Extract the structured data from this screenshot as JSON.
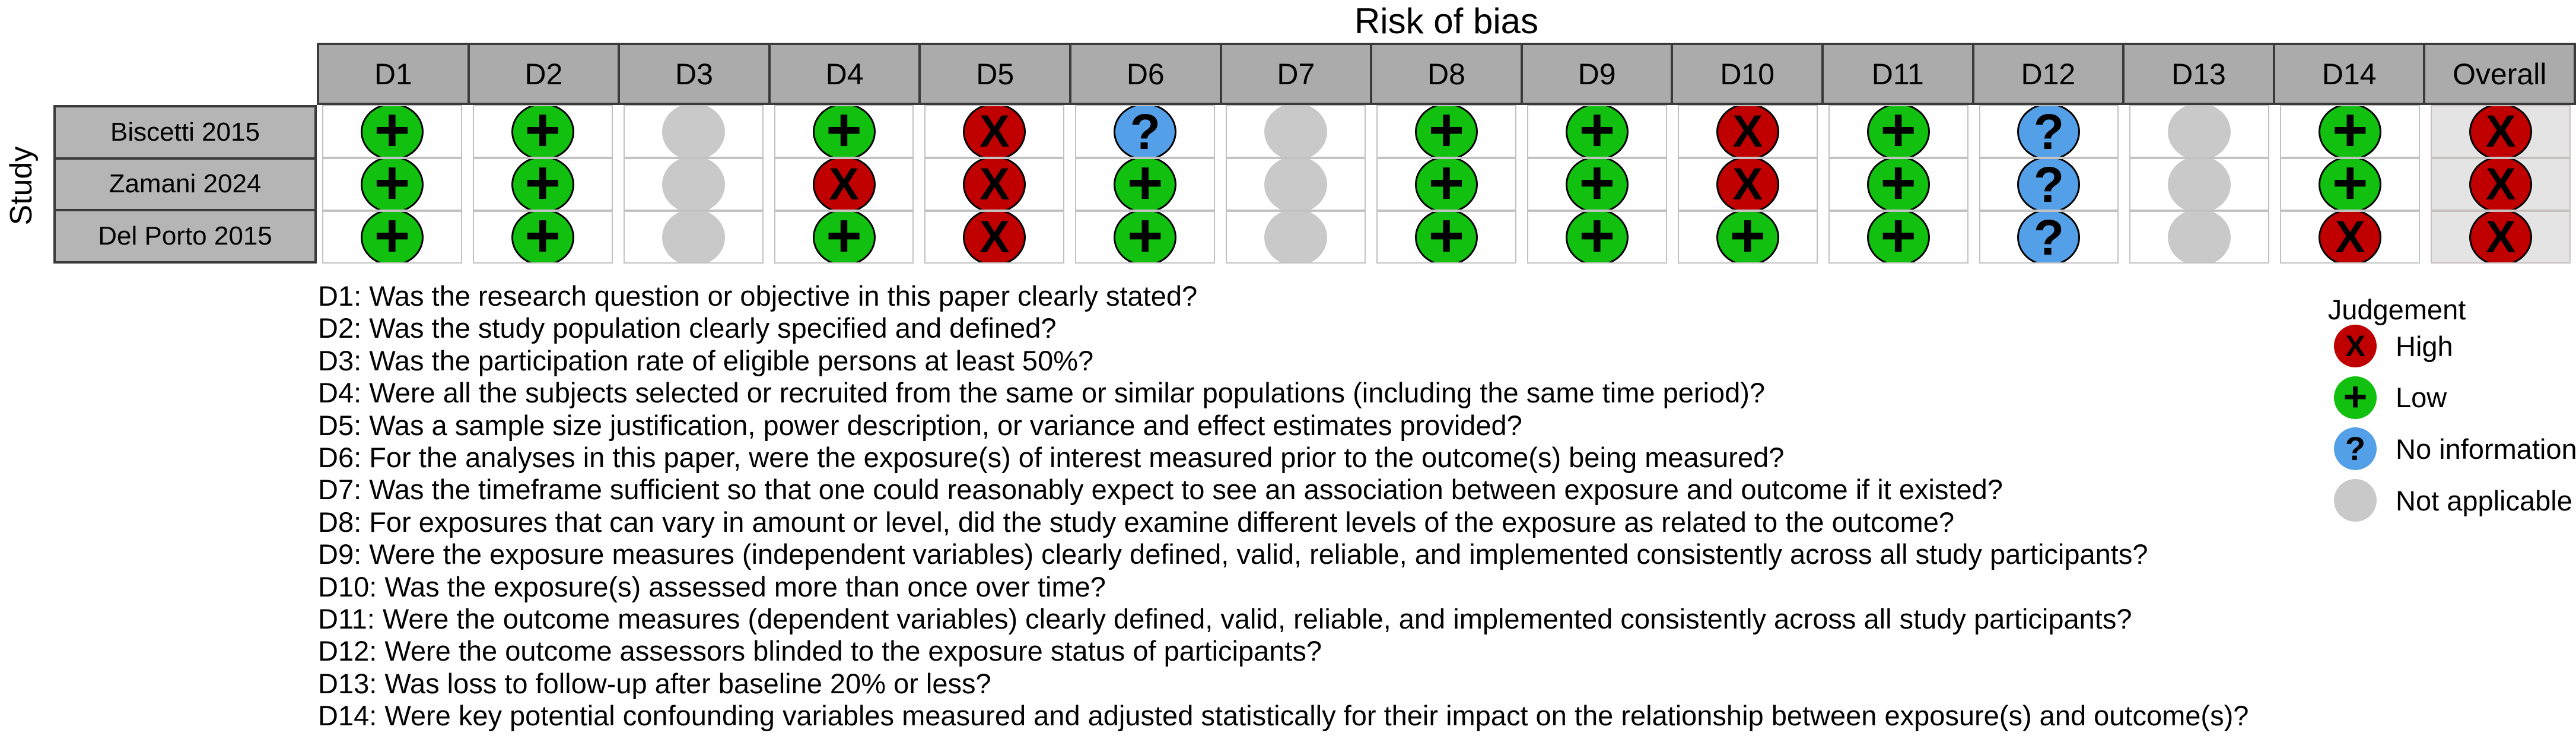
{
  "figure": {
    "title": "Risk of bias",
    "y_axis_label": "Study"
  },
  "legend": {
    "title": "Judgement",
    "items": [
      {
        "code": "high",
        "label": "High"
      },
      {
        "code": "low",
        "label": "Low"
      },
      {
        "code": "noinfo",
        "label": "No information"
      },
      {
        "code": "na",
        "label": "Not applicable"
      }
    ]
  },
  "judgement_styles": {
    "high": {
      "symbol": "X",
      "color": "#c00000",
      "outline": true
    },
    "low": {
      "symbol": "+",
      "color": "#12c00f",
      "outline": true
    },
    "noinfo": {
      "symbol": "?",
      "color": "#54a0e8",
      "outline": true
    },
    "na": {
      "symbol": "",
      "color": "#c9c9c9",
      "outline": false
    }
  },
  "table": {
    "columns": [
      "D1",
      "D2",
      "D3",
      "D4",
      "D5",
      "D6",
      "D7",
      "D8",
      "D9",
      "D10",
      "D11",
      "D12",
      "D13",
      "D14",
      "Overall"
    ],
    "rows": [
      {
        "study": "Biscetti 2015",
        "ratings": [
          "low",
          "low",
          "na",
          "low",
          "high",
          "noinfo",
          "na",
          "low",
          "low",
          "high",
          "low",
          "noinfo",
          "na",
          "low",
          "high"
        ]
      },
      {
        "study": "Zamani 2024",
        "ratings": [
          "low",
          "low",
          "na",
          "high",
          "high",
          "low",
          "na",
          "low",
          "low",
          "high",
          "low",
          "noinfo",
          "na",
          "low",
          "high"
        ]
      },
      {
        "study": "Del Porto 2015",
        "ratings": [
          "low",
          "low",
          "na",
          "low",
          "high",
          "low",
          "na",
          "low",
          "low",
          "low",
          "low",
          "noinfo",
          "na",
          "high",
          "high"
        ]
      }
    ]
  },
  "questions": [
    {
      "id": "D1",
      "text": "Was the research question or objective in this paper clearly stated?"
    },
    {
      "id": "D2",
      "text": "Was the study population clearly specified and defined?"
    },
    {
      "id": "D3",
      "text": "Was the participation rate of eligible persons at least 50%?"
    },
    {
      "id": "D4",
      "text": "Were all the subjects selected or recruited from the same or similar populations (including the same time period)?"
    },
    {
      "id": "D5",
      "text": "Was a sample size justification, power description, or variance and effect estimates provided?"
    },
    {
      "id": "D6",
      "text": "For the analyses in this paper, were the exposure(s) of interest measured prior to the outcome(s) being measured?"
    },
    {
      "id": "D7",
      "text": "Was the timeframe sufficient so that one could reasonably expect to see an association between exposure and outcome if it existed?"
    },
    {
      "id": "D8",
      "text": "For exposures that can vary in amount or level, did the study examine different levels of the exposure as related to the outcome?"
    },
    {
      "id": "D9",
      "text": "Were the exposure measures (independent variables) clearly defined, valid, reliable, and implemented consistently across all study participants?"
    },
    {
      "id": "D10",
      "text": "Was the exposure(s) assessed more than once over time?"
    },
    {
      "id": "D11",
      "text": "Were the outcome measures (dependent variables) clearly defined, valid, reliable, and implemented consistently across all study participants?"
    },
    {
      "id": "D12",
      "text": "Were the outcome assessors blinded to the exposure status of participants?"
    },
    {
      "id": "D13",
      "text": "Was loss to follow-up after baseline 20% or less?"
    },
    {
      "id": "D14",
      "text": "Were key potential confounding variables measured and adjusted statistically for their impact on the relationship between exposure(s) and outcome(s)?"
    }
  ],
  "chart_data": {
    "type": "heatmap",
    "title": "Risk of bias",
    "ylabel": "Study",
    "x": [
      "D1",
      "D2",
      "D3",
      "D4",
      "D5",
      "D6",
      "D7",
      "D8",
      "D9",
      "D10",
      "D11",
      "D12",
      "D13",
      "D14",
      "Overall"
    ],
    "y": [
      "Biscetti 2015",
      "Zamani 2024",
      "Del Porto 2015"
    ],
    "values": [
      [
        "low",
        "low",
        "na",
        "low",
        "high",
        "noinfo",
        "na",
        "low",
        "low",
        "high",
        "low",
        "noinfo",
        "na",
        "low",
        "high"
      ],
      [
        "low",
        "low",
        "na",
        "high",
        "high",
        "low",
        "na",
        "low",
        "low",
        "high",
        "low",
        "noinfo",
        "na",
        "low",
        "high"
      ],
      [
        "low",
        "low",
        "na",
        "low",
        "high",
        "low",
        "na",
        "low",
        "low",
        "low",
        "low",
        "noinfo",
        "na",
        "high",
        "high"
      ]
    ],
    "value_legend": {
      "high": "High",
      "low": "Low",
      "noinfo": "No information",
      "na": "Not applicable"
    },
    "colors": {
      "high": "#c00000",
      "low": "#12c00f",
      "noinfo": "#54a0e8",
      "na": "#c9c9c9"
    },
    "legend_position": "right",
    "grid": true
  }
}
